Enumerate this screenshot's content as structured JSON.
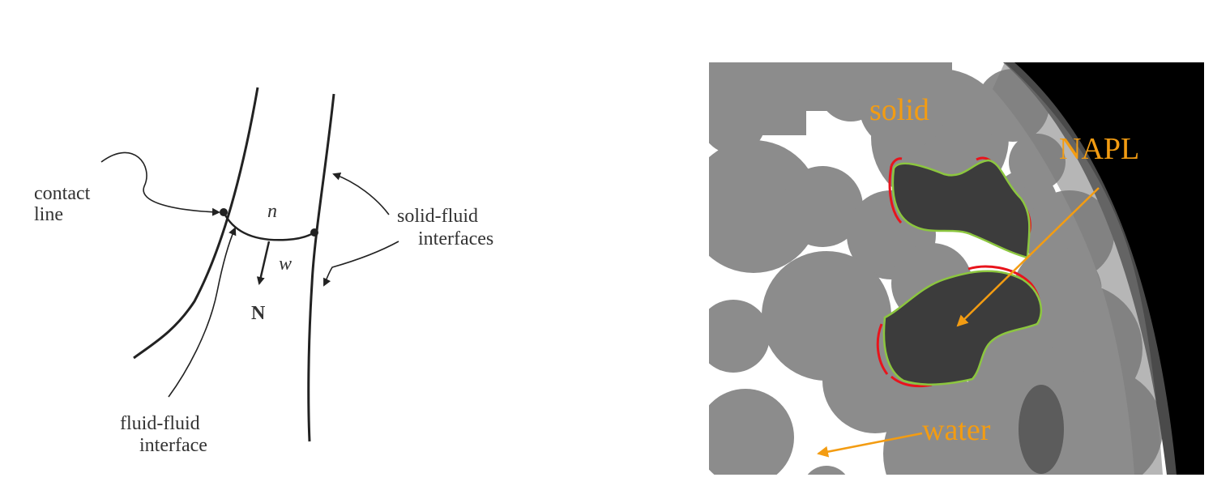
{
  "sketch": {
    "labels": {
      "contact_line_1": "contact",
      "contact_line_2": "line",
      "phase_n": "n",
      "phase_w": "w",
      "normal": "N",
      "solid_fluid_1": "solid-fluid",
      "solid_fluid_2": "interfaces",
      "fluid_fluid_1": "fluid-fluid",
      "fluid_fluid_2": "interface"
    }
  },
  "micrograph": {
    "labels": {
      "solid": "solid",
      "napl": "NAPL",
      "water": "water"
    },
    "colors": {
      "background_dark": "#000000",
      "rim": "#4a4a4a",
      "grain": "#8c8c8c",
      "pore_water": "#ffffff",
      "napl_blob": "#3c3c3c",
      "label": "#f39c12",
      "outline_red": "#e8141c",
      "outline_green": "#8cc63f"
    }
  }
}
